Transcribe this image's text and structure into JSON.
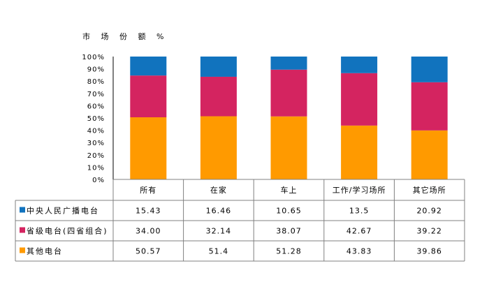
{
  "chart_data": {
    "type": "bar",
    "stacked": true,
    "title": "市 场 份 额 %",
    "categories": [
      "所有",
      "在家",
      "车上",
      "工作/学习场所",
      "其它场所"
    ],
    "y_ticks": [
      "100%",
      "90%",
      "80%",
      "70%",
      "60%",
      "50%",
      "40%",
      "30%",
      "20%",
      "10%",
      "0%"
    ],
    "ylim": [
      0,
      100
    ],
    "grid": false,
    "legend": "data-table-left",
    "series": [
      {
        "name": "中央人民广播电台",
        "color": "#1173BE",
        "values": [
          15.43,
          16.46,
          10.65,
          13.5,
          20.92
        ],
        "labels": [
          "15.43",
          "16.46",
          "10.65",
          "13.5",
          "20.92"
        ]
      },
      {
        "name": "省级电台(四省组合)",
        "color": "#D42460",
        "values": [
          34.0,
          32.14,
          38.07,
          42.67,
          39.22
        ],
        "labels": [
          "34.00",
          "32.14",
          "38.07",
          "42.67",
          "39.22"
        ]
      },
      {
        "name": "其他电台",
        "color": "#FF9A00",
        "values": [
          50.57,
          51.4,
          51.28,
          43.83,
          39.86
        ],
        "labels": [
          "50.57",
          "51.4",
          "51.28",
          "43.83",
          "39.86"
        ]
      }
    ]
  }
}
